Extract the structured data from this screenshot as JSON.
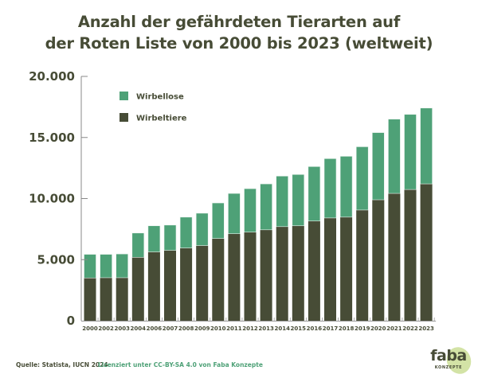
{
  "chart_data": {
    "type": "bar",
    "stacked": true,
    "title": "Anzahl der gefährdeten Tierarten auf der Roten Liste von 2000 bis 2023 (weltweit)",
    "title_lines": [
      "Anzahl der gefährdeten Tierarten auf",
      "der Roten Liste von 2000 bis 2023 (weltweit)"
    ],
    "xlabel": "",
    "ylabel": "",
    "ylim": [
      0,
      20000
    ],
    "yticks": [
      0,
      5000,
      10000,
      15000,
      20000
    ],
    "ytick_labels": [
      "0",
      "5.000",
      "10.000",
      "15.000",
      "20.000"
    ],
    "grid": false,
    "legend_position": "top-left",
    "categories": [
      "2000",
      "2002",
      "2003",
      "2004",
      "2006",
      "2007",
      "2008",
      "2009",
      "2010",
      "2011",
      "2012",
      "2013",
      "2014",
      "2015",
      "2016",
      "2017",
      "2018",
      "2019",
      "2020",
      "2021",
      "2022",
      "2023"
    ],
    "series": [
      {
        "name": "Wirbeltiere",
        "color": "#474c36",
        "values": [
          3500,
          3520,
          3520,
          5190,
          5630,
          5760,
          5950,
          6150,
          6730,
          7120,
          7250,
          7440,
          7700,
          7770,
          8160,
          8410,
          8480,
          9060,
          9900,
          10420,
          10740,
          11200
        ]
      },
      {
        "name": "Wirbellose",
        "color": "#4ea177",
        "values": [
          1935,
          1915,
          1945,
          1990,
          2140,
          2070,
          2530,
          2650,
          2910,
          3300,
          3560,
          3760,
          4140,
          4200,
          4460,
          4860,
          4980,
          5180,
          5500,
          6080,
          6150,
          6210
        ]
      }
    ]
  },
  "footer": {
    "source": "Quelle: Statista, IUCN 2024",
    "license": "Lizenziert unter CC-BY-SA 4.0 von Faba Konzepte"
  },
  "logo": {
    "word": "faba",
    "sub": "KONZEPTE",
    "accent": "#d3e3a6"
  }
}
